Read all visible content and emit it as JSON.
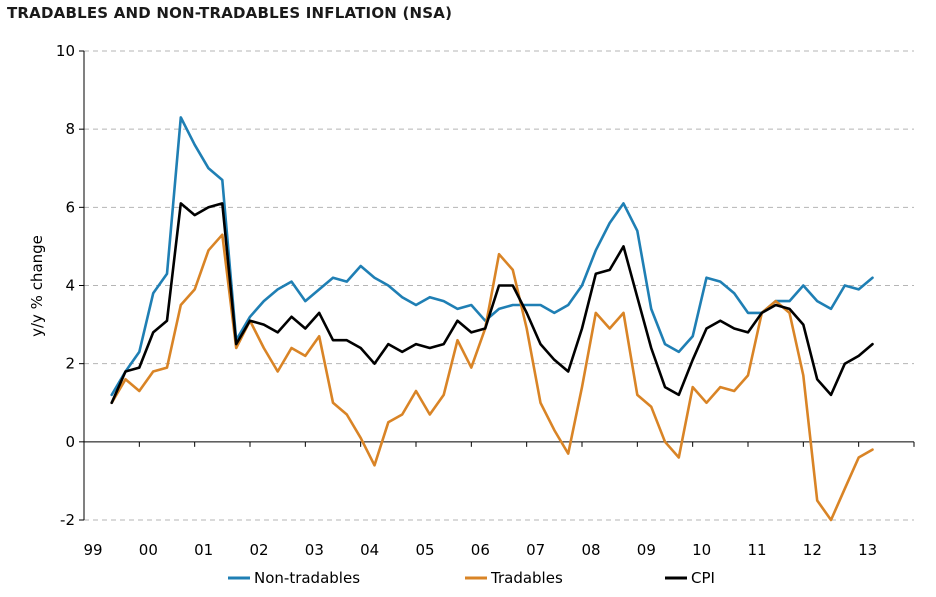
{
  "chart_data": {
    "type": "line",
    "title": "TRADABLES AND NON-TRADABLES INFLATION (NSA)",
    "xlabel": "",
    "ylabel": "y/y % change",
    "ylim": [
      -2,
      10
    ],
    "yticks": [
      -2,
      0,
      2,
      4,
      6,
      8,
      10
    ],
    "xlim": [
      1999,
      2014
    ],
    "xticks": [
      {
        "label": "99",
        "value": 1999
      },
      {
        "label": "00",
        "value": 2000
      },
      {
        "label": "01",
        "value": 2001
      },
      {
        "label": "02",
        "value": 2002
      },
      {
        "label": "03",
        "value": 2003
      },
      {
        "label": "04",
        "value": 2004
      },
      {
        "label": "05",
        "value": 2005
      },
      {
        "label": "06",
        "value": 2006
      },
      {
        "label": "07",
        "value": 2007
      },
      {
        "label": "08",
        "value": 2008
      },
      {
        "label": "09",
        "value": 2009
      },
      {
        "label": "10",
        "value": 2010
      },
      {
        "label": "11",
        "value": 2011
      },
      {
        "label": "12",
        "value": 2012
      },
      {
        "label": "13",
        "value": 2013
      }
    ],
    "grid": "horizontal dashed",
    "legend_position": "bottom",
    "x": [
      1999.5,
      1999.75,
      2000.0,
      2000.25,
      2000.5,
      2000.75,
      2001.0,
      2001.25,
      2001.5,
      2001.75,
      2002.0,
      2002.25,
      2002.5,
      2002.75,
      2003.0,
      2003.25,
      2003.5,
      2003.75,
      2004.0,
      2004.25,
      2004.5,
      2004.75,
      2005.0,
      2005.25,
      2005.5,
      2005.75,
      2006.0,
      2006.25,
      2006.5,
      2006.75,
      2007.0,
      2007.25,
      2007.5,
      2007.75,
      2008.0,
      2008.25,
      2008.5,
      2008.75,
      2009.0,
      2009.25,
      2009.5,
      2009.75,
      2010.0,
      2010.25,
      2010.5,
      2010.75,
      2011.0,
      2011.25,
      2011.5,
      2011.75,
      2012.0,
      2012.25,
      2012.5,
      2012.75,
      2013.0,
      2013.25
    ],
    "series": [
      {
        "name": "Non-tradables",
        "color": "#1f7fb4",
        "values": [
          1.2,
          1.8,
          2.3,
          3.8,
          4.3,
          8.3,
          7.6,
          7.0,
          6.7,
          2.6,
          3.2,
          3.6,
          3.9,
          4.1,
          3.6,
          3.9,
          4.2,
          4.1,
          4.5,
          4.2,
          4.0,
          3.7,
          3.5,
          3.7,
          3.6,
          3.4,
          3.5,
          3.1,
          3.4,
          3.5,
          3.5,
          3.5,
          3.3,
          3.5,
          4.0,
          4.9,
          5.6,
          6.1,
          5.4,
          3.4,
          2.5,
          2.3,
          2.7,
          4.2,
          4.1,
          3.8,
          3.3,
          3.3,
          3.6,
          3.6,
          4.0,
          3.6,
          3.4,
          4.0,
          3.9,
          4.2
        ]
      },
      {
        "name": "Tradables",
        "color": "#d98426",
        "values": [
          1.0,
          1.6,
          1.3,
          1.8,
          1.9,
          3.5,
          3.9,
          4.9,
          5.3,
          2.4,
          3.1,
          2.4,
          1.8,
          2.4,
          2.2,
          2.7,
          1.0,
          0.7,
          0.1,
          -0.6,
          0.5,
          0.7,
          1.3,
          0.7,
          1.2,
          2.6,
          1.9,
          2.9,
          4.8,
          4.4,
          2.9,
          1.0,
          0.3,
          -0.3,
          1.4,
          3.3,
          2.9,
          3.3,
          1.2,
          0.9,
          0.0,
          -0.4,
          1.4,
          1.0,
          1.4,
          1.3,
          1.7,
          3.3,
          3.6,
          3.3,
          1.7,
          -1.5,
          -2.0,
          -1.2,
          -0.4,
          -0.2
        ]
      },
      {
        "name": "CPI",
        "color": "#000000",
        "values": [
          1.0,
          1.8,
          1.9,
          2.8,
          3.1,
          6.1,
          5.8,
          6.0,
          6.1,
          2.5,
          3.1,
          3.0,
          2.8,
          3.2,
          2.9,
          3.3,
          2.6,
          2.6,
          2.4,
          2.0,
          2.5,
          2.3,
          2.5,
          2.4,
          2.5,
          3.1,
          2.8,
          2.9,
          4.0,
          4.0,
          3.3,
          2.5,
          2.1,
          1.8,
          2.9,
          4.3,
          4.4,
          5.0,
          3.7,
          2.4,
          1.4,
          1.2,
          2.1,
          2.9,
          3.1,
          2.9,
          2.8,
          3.3,
          3.5,
          3.4,
          3.0,
          1.6,
          1.2,
          2.0,
          2.2,
          2.5
        ]
      }
    ]
  }
}
